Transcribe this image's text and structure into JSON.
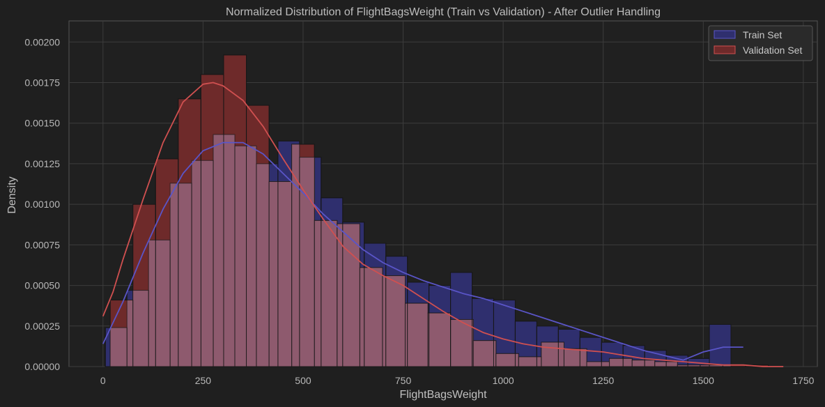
{
  "chart_data": {
    "type": "bar",
    "title": "Normalized Distribution of FlightBagsWeight (Train vs Validation) - After Outlier Handling",
    "xlabel": "FlightBagsWeight",
    "ylabel": "Density",
    "xlim": [
      -85,
      1785
    ],
    "ylim": [
      0,
      0.00213
    ],
    "xticks": [
      0,
      250,
      500,
      750,
      1000,
      1250,
      1500,
      1750
    ],
    "xtick_labels": [
      "0",
      "250",
      "500",
      "750",
      "1000",
      "1250",
      "1500",
      "1750"
    ],
    "yticks": [
      0,
      0.00025,
      0.0005,
      0.00075,
      0.001,
      0.00125,
      0.0015,
      0.00175,
      0.002
    ],
    "ytick_labels": [
      "0.00000",
      "0.00025",
      "0.00050",
      "0.00075",
      "0.00100",
      "0.00125",
      "0.00150",
      "0.00175",
      "0.00200"
    ],
    "grid": true,
    "legend_position": "top-right",
    "series": [
      {
        "name": "Train Set",
        "color": "#2f2f6e",
        "line_color": "#5a55c8",
        "bin_start": 6,
        "bin_width": 53.9,
        "values": [
          0.00024,
          0.00047,
          0.00078,
          0.00113,
          0.00127,
          0.00143,
          0.00136,
          0.00125,
          0.00139,
          0.00129,
          0.00104,
          0.00089,
          0.00076,
          0.00068,
          0.00052,
          0.0005,
          0.00058,
          0.00042,
          0.00041,
          0.00028,
          0.00025,
          0.00023,
          0.00018,
          0.00015,
          0.00013,
          0.0001,
          7e-05,
          5e-05,
          0.00026
        ],
        "kde_x": [
          0,
          50,
          100,
          150,
          200,
          250,
          300,
          350,
          400,
          450,
          500,
          550,
          600,
          650,
          700,
          750,
          800,
          850,
          900,
          950,
          1000,
          1050,
          1100,
          1150,
          1200,
          1250,
          1300,
          1350,
          1400,
          1450,
          1500,
          1550,
          1600
        ],
        "kde_y": [
          0.00014,
          0.0004,
          0.0007,
          0.00097,
          0.00119,
          0.00133,
          0.00138,
          0.00138,
          0.00131,
          0.00119,
          0.00107,
          0.00094,
          0.00083,
          0.00072,
          0.00064,
          0.00058,
          0.00053,
          0.00049,
          0.00045,
          0.00042,
          0.00038,
          0.00034,
          0.0003,
          0.00026,
          0.00022,
          0.00018,
          0.00014,
          0.0001,
          7e-05,
          4e-05,
          9e-05,
          0.00012,
          0.00012
        ]
      },
      {
        "name": "Validation Set",
        "color": "#6e2a2a",
        "line_color": "#d05050",
        "bin_start": 18,
        "bin_width": 56.7,
        "values": [
          0.00041,
          0.001,
          0.00128,
          0.00165,
          0.0018,
          0.00192,
          0.00161,
          0.00114,
          0.00137,
          0.0009,
          0.00088,
          0.00061,
          0.00056,
          0.00039,
          0.00033,
          0.00029,
          0.00016,
          8e-05,
          6e-05,
          0.00015,
          0.00011,
          3e-05,
          5e-05,
          4e-05,
          3e-05,
          1e-05,
          1e-05,
          1e-05,
          1e-05,
          0
        ],
        "kde_x": [
          0,
          25,
          50,
          100,
          150,
          200,
          250,
          275,
          300,
          350,
          400,
          450,
          500,
          550,
          600,
          650,
          700,
          750,
          800,
          850,
          900,
          950,
          1000,
          1050,
          1100,
          1150,
          1200,
          1250,
          1300,
          1350,
          1400,
          1450,
          1500,
          1550,
          1600,
          1650,
          1700
        ],
        "kde_y": [
          0.00031,
          0.00046,
          0.00066,
          0.00103,
          0.00138,
          0.00163,
          0.00174,
          0.00175,
          0.00173,
          0.00164,
          0.00148,
          0.00128,
          0.00109,
          0.00091,
          0.00074,
          0.00063,
          0.00056,
          0.0005,
          0.00042,
          0.00034,
          0.00027,
          0.00021,
          0.00017,
          0.00014,
          0.00012,
          0.00011,
          0.0001,
          9e-05,
          7e-05,
          5e-05,
          4e-05,
          3e-05,
          2e-05,
          1e-05,
          1e-05,
          0,
          0
        ]
      }
    ],
    "overlap_color": "#8e5a6e"
  }
}
